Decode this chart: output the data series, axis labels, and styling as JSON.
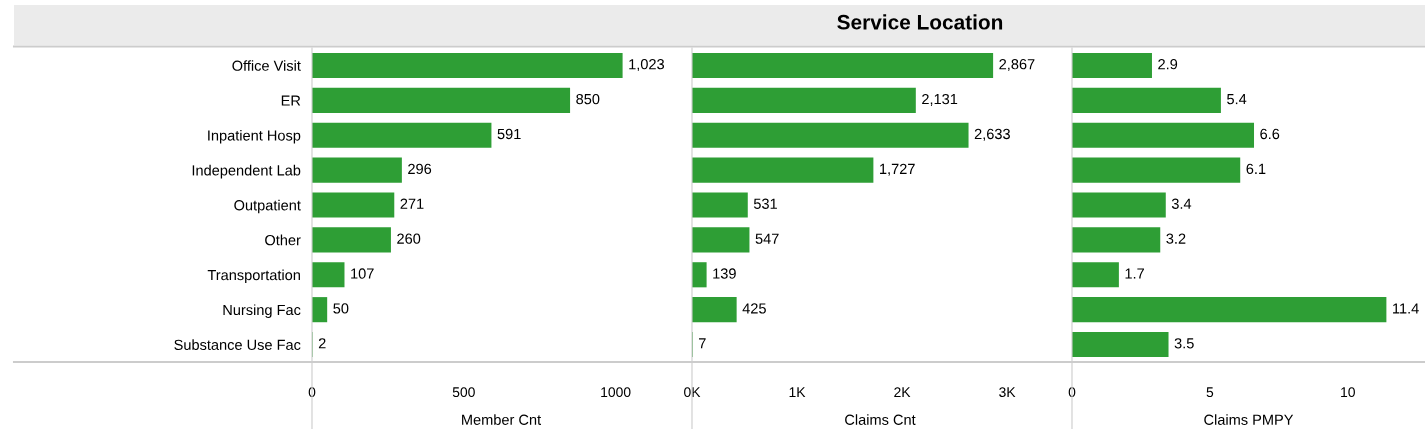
{
  "chart_data": [
    {
      "type": "bar",
      "orientation": "horizontal",
      "xlabel": "Member Cnt",
      "categories": [
        "Office Visit",
        "ER",
        "Inpatient Hosp",
        "Independent Lab",
        "Outpatient",
        "Other",
        "Transportation",
        "Nursing Fac",
        "Substance Use Fac"
      ],
      "values": [
        1023,
        850,
        591,
        296,
        271,
        260,
        107,
        50,
        2
      ],
      "value_labels": [
        "1,023",
        "850",
        "591",
        "296",
        "271",
        "260",
        "107",
        "50",
        "2"
      ],
      "color": "#2e9e35",
      "xlim": [
        0,
        1245
      ],
      "xticks": [
        0,
        500,
        1000
      ]
    },
    {
      "type": "bar",
      "orientation": "horizontal",
      "title": "Service Location",
      "xlabel": "Claims Cnt",
      "values": [
        2867,
        2131,
        2633,
        1727,
        531,
        547,
        139,
        425,
        7
      ],
      "value_labels": [
        "2,867",
        "2,131",
        "2,633",
        "1,727",
        "531",
        "547",
        "139",
        "425",
        "7"
      ],
      "color": "#2e9e35",
      "xlim": [
        0,
        3580
      ],
      "xticks": [
        {
          "value": 0,
          "label": "0K"
        },
        {
          "value": 1000,
          "label": "1K"
        },
        {
          "value": 2000,
          "label": "2K"
        },
        {
          "value": 3000,
          "label": "3K"
        }
      ],
      "tick_labels": "x"
    },
    {
      "type": "bar",
      "orientation": "horizontal",
      "xlabel": "Claims PMPY",
      "values": [
        2.9,
        5.4,
        6.6,
        6.1,
        3.4,
        3.2,
        1.7,
        11.4,
        3.5
      ],
      "data_labels": true,
      "color": "#2e9e35",
      "xlim": [
        0,
        12.8
      ],
      "xticks": [
        0,
        5,
        10
      ],
      "tick_labels": "x"
    }
  ]
}
